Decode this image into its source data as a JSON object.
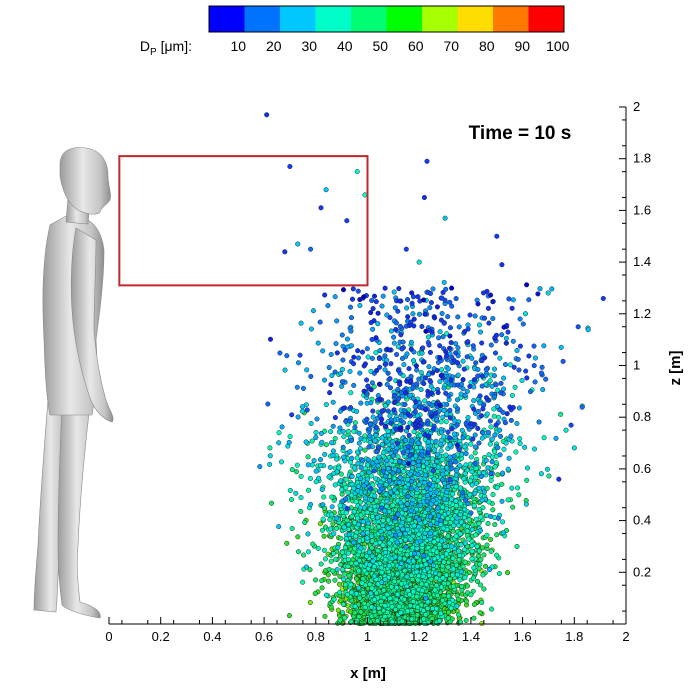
{
  "chart_data": {
    "type": "scatter",
    "title": "",
    "annotation": "Time = 10 s",
    "xlabel": "x [m]",
    "ylabel": "z [m]",
    "xlim": [
      0,
      2
    ],
    "ylim": [
      0,
      2
    ],
    "xticks": [
      "0",
      "0.2",
      "0.4",
      "0.6",
      "0.8",
      "1",
      "1.2",
      "1.4",
      "1.6",
      "1.8",
      "2"
    ],
    "yticks": [
      "0.2",
      "0.4",
      "0.6",
      "0.8",
      "1",
      "1.2",
      "1.4",
      "1.6",
      "1.8",
      "2"
    ],
    "colorbar": {
      "label_main": "D",
      "label_sub": "P",
      "label_unit": " [μm]:",
      "range": [
        0,
        100
      ],
      "ticks": [
        "10",
        "20",
        "30",
        "40",
        "50",
        "60",
        "70",
        "80",
        "90",
        "100"
      ],
      "colors": [
        "#0000ff",
        "#0073ff",
        "#00c8ff",
        "#00ffc8",
        "#00ff73",
        "#00ff00",
        "#a5ff00",
        "#ffdd00",
        "#ff7800",
        "#ff0000"
      ]
    },
    "region_box": {
      "x": [
        0.04,
        1.0
      ],
      "z": [
        1.31,
        1.81
      ],
      "color": "#c0282c"
    },
    "particles_dense_core": {
      "count": 6000,
      "x_range": [
        0.75,
        1.55
      ],
      "z_range": [
        0.0,
        1.2
      ],
      "note_colors": "green (50-70 um) dominant near floor, cyan-blue (10-30 um) dominant above z = 0.8"
    },
    "outliers": [
      {
        "x": 0.61,
        "z": 1.97,
        "d": 12
      },
      {
        "x": 0.7,
        "z": 1.77,
        "d": 15
      },
      {
        "x": 0.84,
        "z": 1.68,
        "d": 30
      },
      {
        "x": 0.82,
        "z": 1.61,
        "d": 14
      },
      {
        "x": 0.96,
        "z": 1.75,
        "d": 40
      },
      {
        "x": 0.92,
        "z": 1.56,
        "d": 15
      },
      {
        "x": 0.99,
        "z": 1.66,
        "d": 40
      },
      {
        "x": 1.23,
        "z": 1.79,
        "d": 15
      },
      {
        "x": 1.22,
        "z": 1.65,
        "d": 12
      },
      {
        "x": 1.3,
        "z": 1.57,
        "d": 30
      },
      {
        "x": 1.5,
        "z": 1.5,
        "d": 14
      },
      {
        "x": 1.52,
        "z": 1.39,
        "d": 12
      },
      {
        "x": 1.74,
        "z": 0.56,
        "d": 12
      },
      {
        "x": 0.73,
        "z": 1.47,
        "d": 30
      },
      {
        "x": 0.68,
        "z": 1.44,
        "d": 12
      },
      {
        "x": 0.78,
        "z": 1.45,
        "d": 20
      },
      {
        "x": 1.2,
        "z": 1.4,
        "d": 35
      },
      {
        "x": 1.15,
        "z": 1.45,
        "d": 15
      }
    ]
  }
}
